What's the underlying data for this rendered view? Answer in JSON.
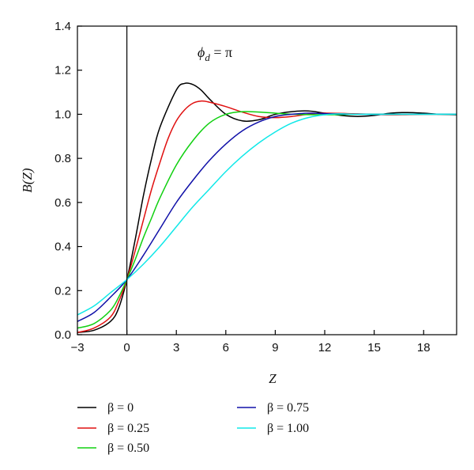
{
  "chart_data": {
    "type": "line",
    "xlabel": "Z",
    "ylabel": "B(Z)",
    "annotation": {
      "symbol": "ϕ",
      "subscript": "d",
      "rest": " = π"
    },
    "xlim": [
      -3,
      20
    ],
    "ylim": [
      0,
      1.4
    ],
    "xticks": [
      -3,
      0,
      3,
      6,
      9,
      12,
      15,
      18
    ],
    "yticks": [
      0.0,
      0.2,
      0.4,
      0.6,
      0.8,
      1.0,
      1.2,
      1.4
    ],
    "ytick_labels": [
      "0.0",
      "0.2",
      "0.4",
      "0.6",
      "0.8",
      "1.0",
      "1.2",
      "1.4"
    ],
    "vertical_line_x": 0,
    "legend_position": "bottom",
    "series": [
      {
        "name": "β = 0",
        "color": "#000000",
        "x": [
          -3,
          -2,
          -1,
          -0.5,
          0,
          0.5,
          1,
          1.5,
          2,
          3,
          3.5,
          4,
          4.5,
          5,
          6,
          7,
          8,
          9,
          10,
          11,
          12,
          13,
          14,
          15,
          16,
          17,
          18,
          19,
          20
        ],
        "y": [
          0.01,
          0.02,
          0.06,
          0.12,
          0.25,
          0.43,
          0.63,
          0.8,
          0.94,
          1.11,
          1.14,
          1.135,
          1.11,
          1.07,
          1.0,
          0.97,
          0.975,
          1.0,
          1.012,
          1.015,
          1.005,
          0.995,
          0.99,
          0.995,
          1.005,
          1.008,
          1.005,
          1.0,
          0.998
        ]
      },
      {
        "name": "β = 0.25",
        "color": "#e01010",
        "x": [
          -3,
          -2,
          -1,
          -0.5,
          0,
          0.5,
          1,
          1.5,
          2,
          2.5,
          3,
          3.5,
          4,
          4.5,
          5,
          6,
          7,
          8,
          9,
          10,
          11,
          12,
          14,
          16,
          18,
          20
        ],
        "y": [
          0.01,
          0.03,
          0.08,
          0.15,
          0.25,
          0.38,
          0.52,
          0.66,
          0.78,
          0.89,
          0.97,
          1.02,
          1.05,
          1.06,
          1.055,
          1.035,
          1.01,
          0.99,
          0.985,
          0.99,
          1.0,
          1.005,
          1.002,
          0.998,
          1.0,
          1.0
        ]
      },
      {
        "name": "β = 0.50",
        "color": "#10d010",
        "x": [
          -3,
          -2,
          -1,
          -0.5,
          0,
          0.5,
          1,
          1.5,
          2,
          3,
          4,
          5,
          6,
          7,
          8,
          9,
          10,
          12,
          14,
          16,
          18,
          20
        ],
        "y": [
          0.03,
          0.05,
          0.11,
          0.17,
          0.25,
          0.34,
          0.44,
          0.53,
          0.62,
          0.77,
          0.88,
          0.96,
          1.0,
          1.012,
          1.01,
          1.005,
          1.0,
          0.998,
          1.0,
          1.0,
          1.0,
          1.0
        ]
      },
      {
        "name": "β = 0.75",
        "color": "#1010a8",
        "x": [
          -3,
          -2,
          -1,
          0,
          1,
          2,
          3,
          4,
          5,
          6,
          7,
          8,
          9,
          10,
          11,
          12,
          14,
          16,
          18,
          20
        ],
        "y": [
          0.06,
          0.1,
          0.17,
          0.25,
          0.36,
          0.48,
          0.6,
          0.7,
          0.79,
          0.865,
          0.925,
          0.965,
          0.99,
          1.0,
          1.005,
          1.003,
          1.0,
          1.0,
          1.0,
          1.0
        ]
      },
      {
        "name": "β = 1.00",
        "color": "#10e8e8",
        "x": [
          -3,
          -2,
          -1,
          0,
          1,
          2,
          3,
          4,
          5,
          6,
          7,
          8,
          9,
          10,
          11,
          12,
          13,
          14,
          16,
          18,
          20
        ],
        "y": [
          0.09,
          0.13,
          0.19,
          0.25,
          0.32,
          0.4,
          0.49,
          0.58,
          0.66,
          0.74,
          0.81,
          0.87,
          0.92,
          0.96,
          0.985,
          0.998,
          1.002,
          1.0,
          1.0,
          1.0,
          1.0
        ]
      }
    ]
  }
}
